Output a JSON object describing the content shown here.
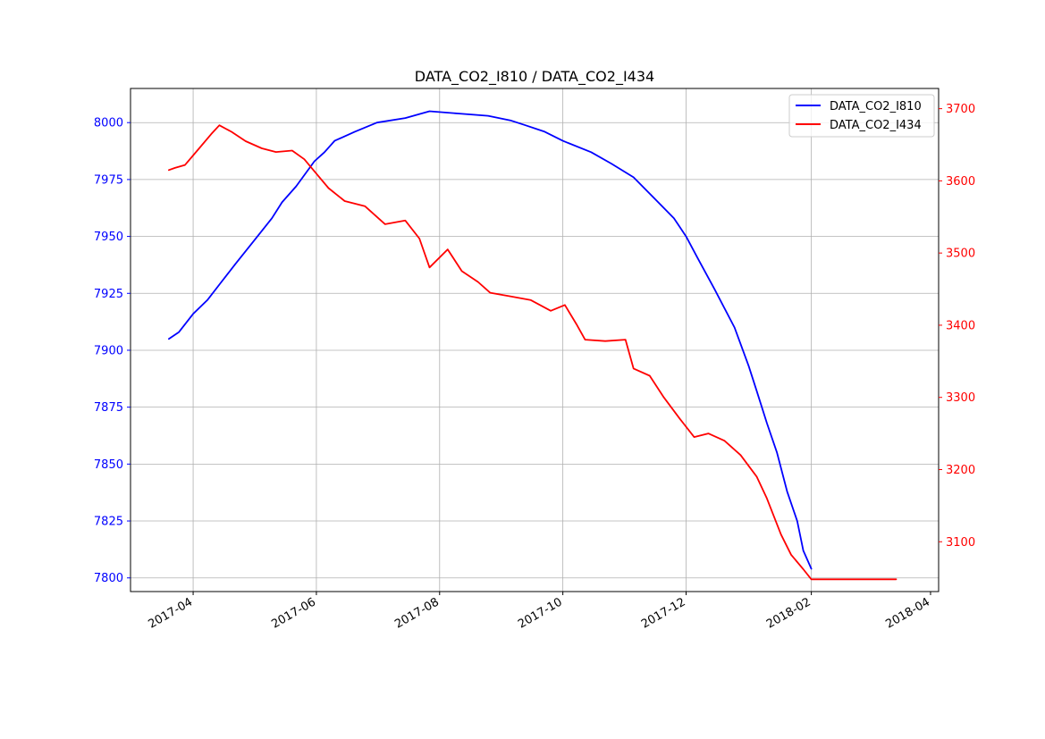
{
  "chart_data": {
    "type": "line",
    "title": "DATA_CO2_I810 / DATA_CO2_I434",
    "xlabel": "",
    "grid": true,
    "legend_position": "top-right",
    "x_ticks": [
      "2017-04",
      "2017-06",
      "2017-08",
      "2017-10",
      "2017-12",
      "2018-02",
      "2018-04"
    ],
    "xlim": [
      "2017-03-01",
      "2018-04-05"
    ],
    "y_left": {
      "ylim": [
        7794,
        8015
      ],
      "ticks": [
        7800,
        7825,
        7850,
        7875,
        7900,
        7925,
        7950,
        7975,
        8000
      ],
      "color": "#0000ff"
    },
    "y_right": {
      "ylim": [
        3031,
        3728
      ],
      "ticks": [
        3100,
        3200,
        3300,
        3400,
        3500,
        3600,
        3700
      ],
      "color": "#ff0000"
    },
    "series": [
      {
        "name": "DATA_CO2_I810",
        "axis": "left",
        "color": "#0000ff",
        "points": [
          [
            "2017-03-20",
            7905
          ],
          [
            "2017-03-25",
            7908
          ],
          [
            "2017-04-01",
            7916
          ],
          [
            "2017-04-08",
            7922
          ],
          [
            "2017-04-15",
            7930
          ],
          [
            "2017-04-22",
            7938
          ],
          [
            "2017-05-01",
            7948
          ],
          [
            "2017-05-10",
            7958
          ],
          [
            "2017-05-15",
            7965
          ],
          [
            "2017-05-22",
            7972
          ],
          [
            "2017-05-31",
            7983
          ],
          [
            "2017-06-05",
            7987
          ],
          [
            "2017-06-10",
            7992
          ],
          [
            "2017-06-20",
            7996
          ],
          [
            "2017-07-01",
            8000
          ],
          [
            "2017-07-15",
            8002
          ],
          [
            "2017-07-27",
            8005
          ],
          [
            "2017-08-10",
            8004
          ],
          [
            "2017-08-25",
            8003
          ],
          [
            "2017-09-05",
            8001
          ],
          [
            "2017-09-12",
            7999
          ],
          [
            "2017-09-22",
            7996
          ],
          [
            "2017-10-01",
            7992
          ],
          [
            "2017-10-15",
            7987
          ],
          [
            "2017-10-25",
            7982
          ],
          [
            "2017-11-05",
            7976
          ],
          [
            "2017-11-15",
            7967
          ],
          [
            "2017-11-25",
            7958
          ],
          [
            "2017-12-01",
            7950
          ],
          [
            "2017-12-07",
            7940
          ],
          [
            "2017-12-15",
            7927
          ],
          [
            "2017-12-25",
            7910
          ],
          [
            "2018-01-01",
            7893
          ],
          [
            "2018-01-05",
            7882
          ],
          [
            "2018-01-10",
            7868
          ],
          [
            "2018-01-15",
            7855
          ],
          [
            "2018-01-20",
            7838
          ],
          [
            "2018-01-25",
            7825
          ],
          [
            "2018-01-28",
            7812
          ],
          [
            "2018-02-01",
            7804
          ]
        ]
      },
      {
        "name": "DATA_CO2_I434",
        "axis": "right",
        "color": "#ff0000",
        "points": [
          [
            "2017-03-20",
            3615
          ],
          [
            "2017-03-23",
            3618
          ],
          [
            "2017-03-28",
            3622
          ],
          [
            "2017-04-04",
            3645
          ],
          [
            "2017-04-10",
            3665
          ],
          [
            "2017-04-14",
            3677
          ],
          [
            "2017-04-20",
            3668
          ],
          [
            "2017-04-27",
            3655
          ],
          [
            "2017-05-05",
            3645
          ],
          [
            "2017-05-12",
            3640
          ],
          [
            "2017-05-20",
            3642
          ],
          [
            "2017-05-26",
            3630
          ],
          [
            "2017-06-01",
            3610
          ],
          [
            "2017-06-07",
            3590
          ],
          [
            "2017-06-15",
            3572
          ],
          [
            "2017-06-25",
            3565
          ],
          [
            "2017-07-05",
            3540
          ],
          [
            "2017-07-15",
            3545
          ],
          [
            "2017-07-22",
            3520
          ],
          [
            "2017-07-27",
            3480
          ],
          [
            "2017-08-05",
            3505
          ],
          [
            "2017-08-12",
            3475
          ],
          [
            "2017-08-20",
            3460
          ],
          [
            "2017-08-26",
            3445
          ],
          [
            "2017-09-05",
            3440
          ],
          [
            "2017-09-15",
            3435
          ],
          [
            "2017-09-25",
            3420
          ],
          [
            "2017-10-02",
            3428
          ],
          [
            "2017-10-08",
            3400
          ],
          [
            "2017-10-12",
            3380
          ],
          [
            "2017-10-22",
            3378
          ],
          [
            "2017-11-01",
            3380
          ],
          [
            "2017-11-05",
            3340
          ],
          [
            "2017-11-13",
            3330
          ],
          [
            "2017-11-20",
            3300
          ],
          [
            "2017-11-28",
            3270
          ],
          [
            "2017-12-05",
            3245
          ],
          [
            "2017-12-12",
            3250
          ],
          [
            "2017-12-20",
            3240
          ],
          [
            "2017-12-28",
            3220
          ],
          [
            "2018-01-05",
            3190
          ],
          [
            "2018-01-10",
            3160
          ],
          [
            "2018-01-17",
            3110
          ],
          [
            "2018-01-22",
            3082
          ],
          [
            "2018-01-28",
            3062
          ],
          [
            "2018-02-01",
            3048
          ],
          [
            "2018-03-15",
            3048
          ]
        ]
      }
    ]
  }
}
